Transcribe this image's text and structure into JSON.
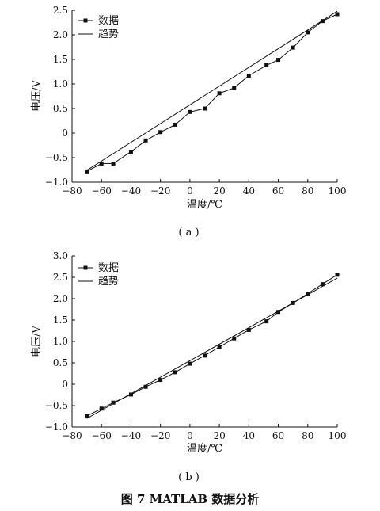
{
  "figure": {
    "caption": "图 7   MATLAB 数据分析"
  },
  "chart_data": [
    {
      "type": "line",
      "panel_label": "( a )",
      "xlabel": "温度/℃",
      "ylabel": "电压/V",
      "xlim": [
        -80,
        100
      ],
      "ylim": [
        -1.0,
        2.5
      ],
      "xticks": [
        -80,
        -60,
        -40,
        -20,
        0,
        20,
        40,
        60,
        80,
        100
      ],
      "yticks": [
        -1.0,
        -0.5,
        0,
        0.5,
        1.0,
        1.5,
        2.0,
        2.5
      ],
      "ytick_labels": [
        "−1.0",
        "−0.5",
        "0",
        "0.5",
        "1.0",
        "1.5",
        "2.0",
        "2.5"
      ],
      "xtick_labels": [
        "−80",
        "−60",
        "−40",
        "−20",
        "0",
        "20",
        "40",
        "60",
        "80",
        "100"
      ],
      "legend_position": "top-left",
      "grid": false,
      "series": [
        {
          "name": "数据",
          "marker": "square",
          "color": "#111111",
          "x": [
            -70,
            -60,
            -52,
            -40,
            -30,
            -20,
            -10,
            0,
            10,
            20,
            30,
            40,
            52,
            60,
            70,
            80,
            90,
            100
          ],
          "y": [
            -0.78,
            -0.62,
            -0.62,
            -0.38,
            -0.15,
            0.02,
            0.17,
            0.43,
            0.5,
            0.81,
            0.92,
            1.17,
            1.38,
            1.49,
            1.74,
            2.05,
            2.28,
            2.42
          ]
        },
        {
          "name": "趋势",
          "marker": "none",
          "color": "#111111",
          "x": [
            -70,
            100
          ],
          "y": [
            -0.76,
            2.48
          ]
        }
      ]
    },
    {
      "type": "line",
      "panel_label": "( b )",
      "xlabel": "温度/℃",
      "ylabel": "电压/V",
      "xlim": [
        -80,
        100
      ],
      "ylim": [
        -1.0,
        3.0
      ],
      "xticks": [
        -80,
        -60,
        -40,
        -20,
        0,
        20,
        40,
        60,
        80,
        100
      ],
      "yticks": [
        -1.0,
        -0.5,
        0,
        0.5,
        1.0,
        1.5,
        2.0,
        2.5,
        3.0
      ],
      "ytick_labels": [
        "−1.0",
        "−0.5",
        "0",
        "0.5",
        "1.0",
        "1.5",
        "2.0",
        "2.5",
        "3.0"
      ],
      "xtick_labels": [
        "−80",
        "−60",
        "−40",
        "−20",
        "0",
        "20",
        "40",
        "60",
        "80",
        "100"
      ],
      "legend_position": "top-left",
      "grid": false,
      "series": [
        {
          "name": "数据",
          "marker": "square",
          "color": "#111111",
          "x": [
            -70,
            -60,
            -52,
            -40,
            -30,
            -20,
            -10,
            0,
            10,
            20,
            30,
            40,
            52,
            60,
            70,
            80,
            90,
            100
          ],
          "y": [
            -0.74,
            -0.57,
            -0.43,
            -0.24,
            -0.06,
            0.1,
            0.28,
            0.48,
            0.67,
            0.87,
            1.07,
            1.27,
            1.47,
            1.69,
            1.9,
            2.12,
            2.34,
            2.56
          ]
        },
        {
          "name": "趋势",
          "marker": "none",
          "color": "#111111",
          "x": [
            -70,
            100
          ],
          "y": [
            -0.8,
            2.48
          ]
        }
      ]
    }
  ]
}
